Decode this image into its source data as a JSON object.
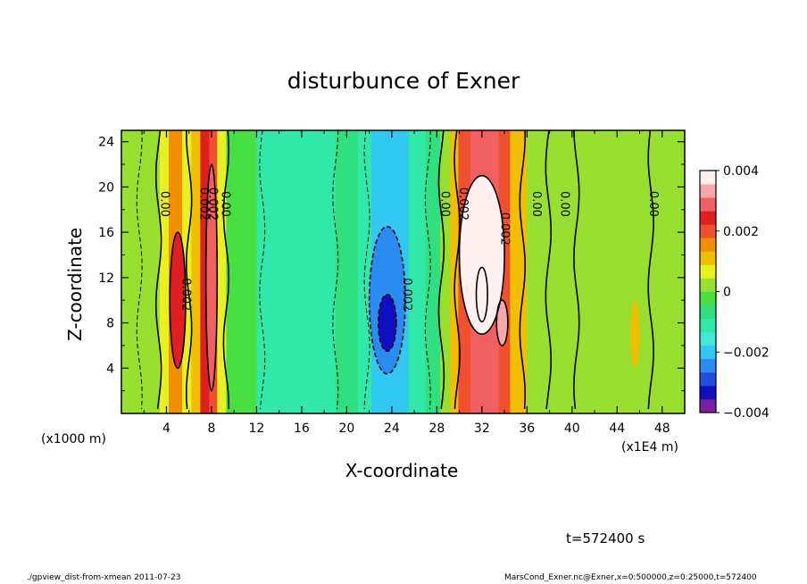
{
  "chart_data": {
    "type": "heatmap",
    "title": "disturbunce of Exner",
    "xlabel": "X-coordinate",
    "ylabel": "Z-coordinate",
    "x_unit_note": "(x1E4 m)",
    "y_unit_note": "(x1000 m)",
    "xlim": [
      0,
      50
    ],
    "ylim": [
      0,
      25
    ],
    "x_ticks": [
      "4",
      "8",
      "12",
      "16",
      "20",
      "24",
      "28",
      "32",
      "36",
      "40",
      "44",
      "48"
    ],
    "y_ticks": [
      "4",
      "8",
      "12",
      "16",
      "20",
      "24"
    ],
    "colorbar": {
      "min": -0.004,
      "max": 0.004,
      "ticks": [
        "0.004",
        "0.002",
        "0",
        "−0.002",
        "−0.004"
      ],
      "colors": [
        "#7a1fa0",
        "#1010c0",
        "#1f4fe0",
        "#2a8cf0",
        "#30c8f0",
        "#40e8d8",
        "#30e8a8",
        "#30e080",
        "#48e040",
        "#98e030",
        "#e8f020",
        "#f0c000",
        "#f09000",
        "#f05030",
        "#e02020",
        "#f06060",
        "#f8a8a8",
        "#fff0f0"
      ]
    },
    "columns": [
      {
        "x0": 0,
        "x1": 2.4,
        "v": 0.0
      },
      {
        "x0": 2.4,
        "x1": 3.4,
        "v": 0.0003
      },
      {
        "x0": 3.4,
        "x1": 4.2,
        "v": 0.0008
      },
      {
        "x0": 4.2,
        "x1": 5.4,
        "v": 0.0016
      },
      {
        "x0": 5.4,
        "x1": 6.2,
        "v": 0.0008
      },
      {
        "x0": 6.2,
        "x1": 7.0,
        "v": 0.0012
      },
      {
        "x0": 7.0,
        "x1": 7.8,
        "v": 0.0024
      },
      {
        "x0": 7.8,
        "x1": 8.5,
        "v": 0.0018
      },
      {
        "x0": 8.5,
        "x1": 9.3,
        "v": 0.0006
      },
      {
        "x0": 9.3,
        "x1": 12.0,
        "v": -0.0002
      },
      {
        "x0": 12.0,
        "x1": 19.0,
        "v": -0.0011
      },
      {
        "x0": 19.0,
        "x1": 21.0,
        "v": -0.0006
      },
      {
        "x0": 21.0,
        "x1": 22.2,
        "v": -0.0012
      },
      {
        "x0": 22.2,
        "x1": 25.5,
        "v": -0.0018
      },
      {
        "x0": 25.5,
        "x1": 27.0,
        "v": -0.0012
      },
      {
        "x0": 27.0,
        "x1": 28.3,
        "v": -0.0005
      },
      {
        "x0": 28.3,
        "x1": 29.2,
        "v": 0.0004
      },
      {
        "x0": 29.2,
        "x1": 29.9,
        "v": 0.0012
      },
      {
        "x0": 29.9,
        "x1": 31.0,
        "v": 0.0022
      },
      {
        "x0": 31.0,
        "x1": 33.5,
        "v": 0.003
      },
      {
        "x0": 33.5,
        "x1": 34.5,
        "v": 0.002
      },
      {
        "x0": 34.5,
        "x1": 36.0,
        "v": 0.001
      },
      {
        "x0": 36.0,
        "x1": 38.0,
        "v": 0.0004
      },
      {
        "x0": 38.0,
        "x1": 50.0,
        "v": 0.0003
      }
    ],
    "blobs": [
      {
        "cx": 5.0,
        "cy": 10,
        "rx": 0.7,
        "ry": 6,
        "v": 0.0024
      },
      {
        "cx": 8.0,
        "cy": 12,
        "rx": 0.5,
        "ry": 10,
        "v": 0.003
      },
      {
        "cx": 23.6,
        "cy": 10,
        "rx": 1.6,
        "ry": 6.5,
        "v": -0.0026
      },
      {
        "cx": 23.6,
        "cy": 8,
        "rx": 0.8,
        "ry": 2.5,
        "v": -0.0033
      },
      {
        "cx": 32.0,
        "cy": 14,
        "rx": 2.0,
        "ry": 7,
        "v": 0.0036
      },
      {
        "cx": 32.0,
        "cy": 10.5,
        "rx": 0.5,
        "ry": 2.4,
        "v": 0.0044
      },
      {
        "cx": 33.8,
        "cy": 8,
        "rx": 0.5,
        "ry": 2,
        "v": 0.0033
      },
      {
        "cx": 45.6,
        "cy": 7,
        "rx": 0.4,
        "ry": 3,
        "v": 0.0011
      },
      {
        "cx": 15.5,
        "cy": 20,
        "rx": 2.5,
        "ry": 6,
        "v": -0.001
      }
    ],
    "contour_labels": [
      {
        "x": 3.8,
        "y": 18.5,
        "text": "0.00"
      },
      {
        "x": 5.7,
        "y": 10.5,
        "text": "0.002"
      },
      {
        "x": 7.3,
        "y": 18.5,
        "text": "0.002"
      },
      {
        "x": 8.1,
        "y": 18.5,
        "text": "0.002"
      },
      {
        "x": 9.2,
        "y": 18.5,
        "text": "0.00"
      },
      {
        "x": 25.3,
        "y": 10.5,
        "text": "0.002"
      },
      {
        "x": 28.7,
        "y": 18.5,
        "text": "0.00"
      },
      {
        "x": 30.3,
        "y": 18.5,
        "text": "0.002"
      },
      {
        "x": 34.0,
        "y": 16.3,
        "text": "0.002"
      },
      {
        "x": 36.8,
        "y": 18.5,
        "text": "0.00"
      },
      {
        "x": 39.3,
        "y": 18.5,
        "text": "0.00"
      },
      {
        "x": 47.2,
        "y": 18.5,
        "text": "0.00"
      }
    ],
    "contours_solid_x": [
      3.3,
      6.0,
      9.3,
      28.4,
      29.8,
      35.6,
      37.9,
      40.4,
      47.0
    ],
    "contours_dashed_x": [
      1.6,
      12.5,
      19.0,
      21.8,
      27.2
    ]
  },
  "time_label": "t=572400 s",
  "footer_left": "./gpview_dist-from-xmean  2011-07-23",
  "footer_right": "MarsCond_Exner.nc@Exner,x=0:500000,z=0:25000,t=572400"
}
